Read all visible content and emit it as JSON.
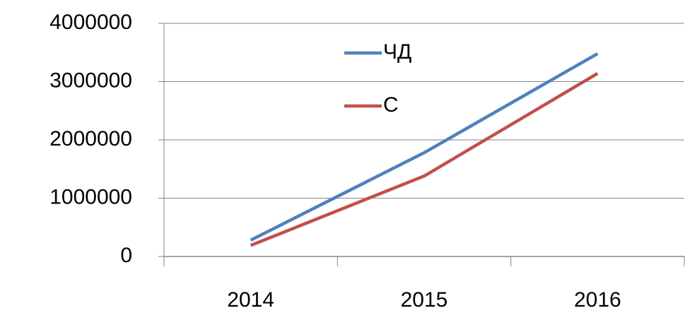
{
  "chart_data": {
    "type": "line",
    "categories": [
      "2014",
      "2015",
      "2016"
    ],
    "series": [
      {
        "name": "ЧД",
        "color": "#4f81bd",
        "values": [
          280000,
          1780000,
          3480000
        ]
      },
      {
        "name": "С",
        "color": "#c0504d",
        "values": [
          190000,
          1380000,
          3140000
        ]
      }
    ],
    "ylim": [
      0,
      4000000
    ],
    "yticks": [
      0,
      1000000,
      2000000,
      3000000,
      4000000
    ],
    "grid": true,
    "legend": "top"
  }
}
